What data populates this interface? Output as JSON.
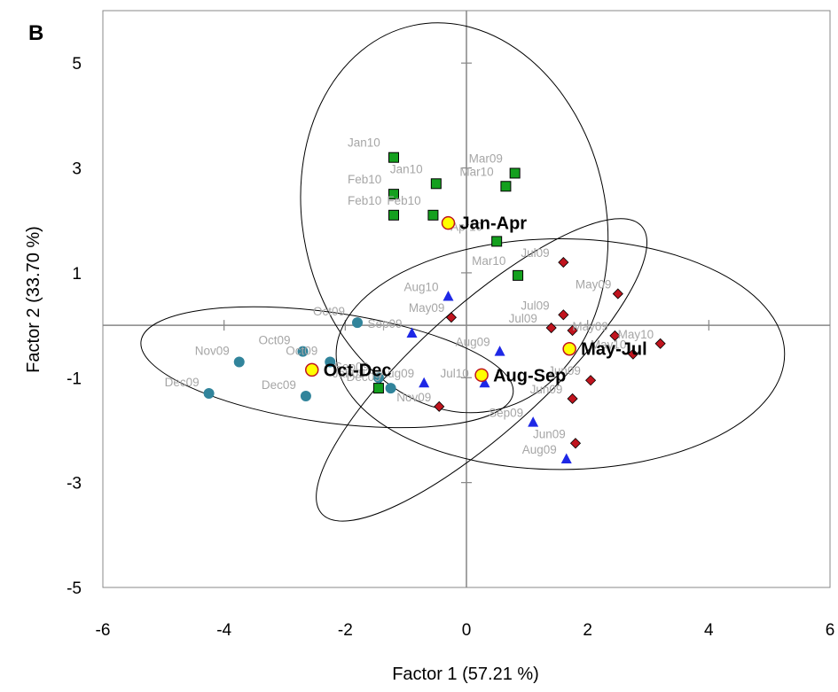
{
  "panel_label": "B",
  "chart_data": {
    "type": "scatter",
    "title": "",
    "xlabel": "Factor 1 (57.21 %)",
    "ylabel": "Factor 2 (33.70 %)",
    "xlim": [
      -6,
      6
    ],
    "ylim": [
      -5,
      6
    ],
    "xticks": [
      -6,
      -4,
      -2,
      0,
      2,
      4,
      6
    ],
    "yticks": [
      -5,
      -3,
      -1,
      1,
      3,
      5
    ],
    "grid": false,
    "colors": {
      "Jan-Apr": "#14a01e",
      "May-Jul": "#c0141e",
      "Aug-Sep": "#1e28e6",
      "Oct-Dec": "#31849b",
      "centroid": "#ffff00"
    },
    "series": [
      {
        "group": "Jan-Apr",
        "marker": "square",
        "points": [
          {
            "x": -1.2,
            "y": 3.2,
            "label": "Jan10"
          },
          {
            "x": -0.5,
            "y": 2.7,
            "label": "Jan10"
          },
          {
            "x": 0.8,
            "y": 2.9,
            "label": "Mar09"
          },
          {
            "x": -1.2,
            "y": 2.5,
            "label": "Feb10"
          },
          {
            "x": 0.65,
            "y": 2.65,
            "label": "Mar10"
          },
          {
            "x": -1.2,
            "y": 2.1,
            "label": "Feb10"
          },
          {
            "x": -0.55,
            "y": 2.1,
            "label": "Feb10"
          },
          {
            "x": 0.5,
            "y": 1.6,
            "label": "Apr10"
          },
          {
            "x": 0.85,
            "y": 0.95,
            "label": "Mar10"
          },
          {
            "x": -1.45,
            "y": -1.2,
            "label": "Jan09"
          }
        ]
      },
      {
        "group": "May-Jul",
        "marker": "diamond",
        "points": [
          {
            "x": 1.6,
            "y": 1.2,
            "label": "Jul09"
          },
          {
            "x": 2.5,
            "y": 0.6,
            "label": "May09"
          },
          {
            "x": 1.6,
            "y": 0.2,
            "label": "Jul09"
          },
          {
            "x": 1.4,
            "y": -0.05,
            "label": "Jul09"
          },
          {
            "x": 1.75,
            "y": -0.1,
            "label": ""
          },
          {
            "x": 2.45,
            "y": -0.2,
            "label": "May09"
          },
          {
            "x": 2.75,
            "y": -0.55,
            "label": "May10"
          },
          {
            "x": 3.2,
            "y": -0.35,
            "label": "May10"
          },
          {
            "x": 2.05,
            "y": -1.05,
            "label": "Jun09"
          },
          {
            "x": 1.75,
            "y": -1.4,
            "label": "Jun09"
          },
          {
            "x": 1.8,
            "y": -2.25,
            "label": "Jun09"
          },
          {
            "x": -0.25,
            "y": 0.15,
            "label": "May09"
          },
          {
            "x": -0.45,
            "y": -1.55,
            "label": "Nov09"
          }
        ]
      },
      {
        "group": "Aug-Sep",
        "marker": "triangle",
        "points": [
          {
            "x": -0.3,
            "y": 0.55,
            "label": "Aug10"
          },
          {
            "x": -0.9,
            "y": -0.15,
            "label": "Sep09"
          },
          {
            "x": 0.55,
            "y": -0.5,
            "label": "Aug09"
          },
          {
            "x": -0.7,
            "y": -1.1,
            "label": "Aug09"
          },
          {
            "x": 0.3,
            "y": -1.1,
            "label": "Jul10"
          },
          {
            "x": 1.1,
            "y": -1.85,
            "label": "Sep09"
          },
          {
            "x": 1.65,
            "y": -2.55,
            "label": "Aug09"
          }
        ]
      },
      {
        "group": "Oct-Dec",
        "marker": "circle",
        "points": [
          {
            "x": -1.8,
            "y": 0.05,
            "label": "Oct09"
          },
          {
            "x": -2.7,
            "y": -0.5,
            "label": "Oct09"
          },
          {
            "x": -3.75,
            "y": -0.7,
            "label": "Nov09"
          },
          {
            "x": -2.25,
            "y": -0.7,
            "label": "Oct09"
          },
          {
            "x": -1.45,
            "y": -1.0,
            "label": "Sep09"
          },
          {
            "x": -1.25,
            "y": -1.2,
            "label": "Dec09"
          },
          {
            "x": -4.25,
            "y": -1.3,
            "label": "Dec09"
          },
          {
            "x": -2.65,
            "y": -1.35,
            "label": "Dec09"
          }
        ]
      }
    ],
    "centroids": [
      {
        "group": "Jan-Apr",
        "label": "Jan-Apr",
        "x": -0.3,
        "y": 1.95
      },
      {
        "group": "May-Jul",
        "label": "May-Jul",
        "x": 1.7,
        "y": -0.45
      },
      {
        "group": "Aug-Sep",
        "label": "Aug-Sep",
        "x": 0.25,
        "y": -0.95
      },
      {
        "group": "Oct-Dec",
        "label": "Oct-Dec",
        "x": -2.55,
        "y": -0.85
      }
    ]
  }
}
